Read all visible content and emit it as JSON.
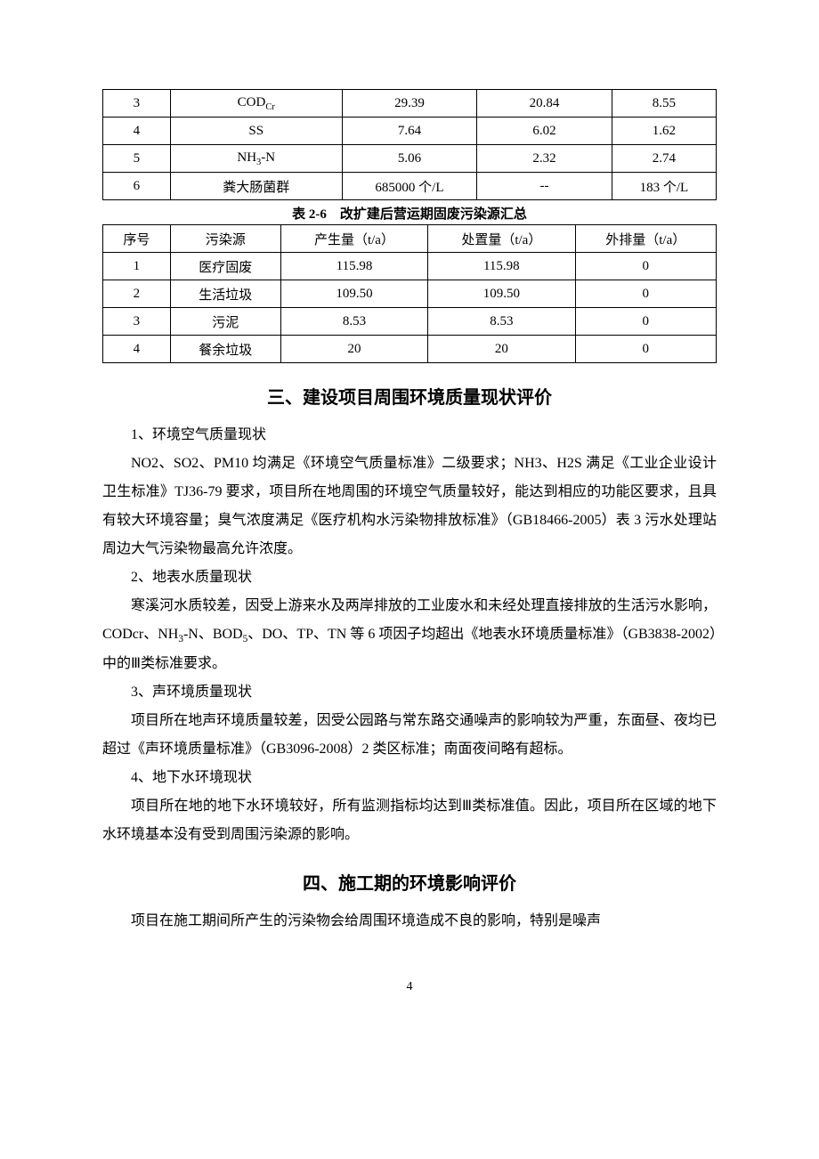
{
  "table1": {
    "col_widths_pct": [
      11,
      28,
      22,
      22,
      17
    ],
    "border_color": "#000000",
    "font_size": 15,
    "rows": [
      {
        "idx": "3",
        "param": "COD",
        "param_sub": "Cr",
        "v1": "29.39",
        "v2": "20.84",
        "v3": "8.55"
      },
      {
        "idx": "4",
        "param": "SS",
        "param_sub": "",
        "v1": "7.64",
        "v2": "6.02",
        "v3": "1.62"
      },
      {
        "idx": "5",
        "param": "NH",
        "param_sub": "3",
        "param_suffix": "-N",
        "v1": "5.06",
        "v2": "2.32",
        "v3": "2.74"
      },
      {
        "idx": "6",
        "param": "粪大肠菌群",
        "param_sub": "",
        "v1": "685000 个/L",
        "v2": "--",
        "v3": "183 个/L"
      }
    ]
  },
  "table2": {
    "caption": "表 2-6　改扩建后营运期固废污染源汇总",
    "col_widths_pct": [
      11,
      18,
      24,
      24,
      23
    ],
    "border_color": "#000000",
    "font_size": 15,
    "headers": [
      "序号",
      "污染源",
      "产生量（t/a）",
      "处置量（t/a）",
      "外排量（t/a）"
    ],
    "rows": [
      {
        "c": [
          "1",
          "医疗固废",
          "115.98",
          "115.98",
          "0"
        ]
      },
      {
        "c": [
          "2",
          "生活垃圾",
          "109.50",
          "109.50",
          "0"
        ]
      },
      {
        "c": [
          "3",
          "污泥",
          "8.53",
          "8.53",
          "0"
        ]
      },
      {
        "c": [
          "4",
          "餐余垃圾",
          "20",
          "20",
          "0"
        ]
      }
    ]
  },
  "section3": {
    "title": "三、建设项目周围环境质量现状评价",
    "items": [
      {
        "label": "1、环境空气质量现状",
        "body": "NO2、SO2、PM10 均满足《环境空气质量标准》二级要求；NH3、H2S 满足《工业企业设计卫生标准》TJ36-79 要求，项目所在地周围的环境空气质量较好，能达到相应的功能区要求，且具有较大环境容量；臭气浓度满足《医疗机构水污染物排放标准》（GB18466-2005）表 3 污水处理站周边大气污染物最高允许浓度。"
      },
      {
        "label": "2、地表水质量现状",
        "body_html": "寒溪河水质较差，因受上游来水及两岸排放的工业废水和未经处理直接排放的生活污水影响，CODcr、NH<span class=\"sub\">3</span>-N、BOD<span class=\"sub\">5</span>、DO、TP、TN 等 6 项因子均超出《地表水环境质量标准》（GB3838-2002）中的Ⅲ类标准要求。"
      },
      {
        "label": "3、声环境质量现状",
        "body": "项目所在地声环境质量较差，因受公园路与常东路交通噪声的影响较为严重，东面昼、夜均已超过《声环境质量标准》（GB3096-2008）2 类区标准；南面夜间略有超标。"
      },
      {
        "label": "4、地下水环境现状",
        "body": "项目所在地的地下水环境较好，所有监测指标均达到Ⅲ类标准值。因此，项目所在区域的地下水环境基本没有受到周围污染源的影响。"
      }
    ]
  },
  "section4": {
    "title": "四、施工期的环境影响评价",
    "body": "项目在施工期间所产生的污染物会给周围环境造成不良的影响，特别是噪声"
  },
  "page_number": "4",
  "colors": {
    "text": "#000000",
    "background": "#ffffff",
    "table_border": "#000000"
  },
  "typography": {
    "body_font_size": 16,
    "body_line_height": 2.0,
    "heading_font_size": 20,
    "caption_font_size": 15,
    "table_font_size": 15
  }
}
